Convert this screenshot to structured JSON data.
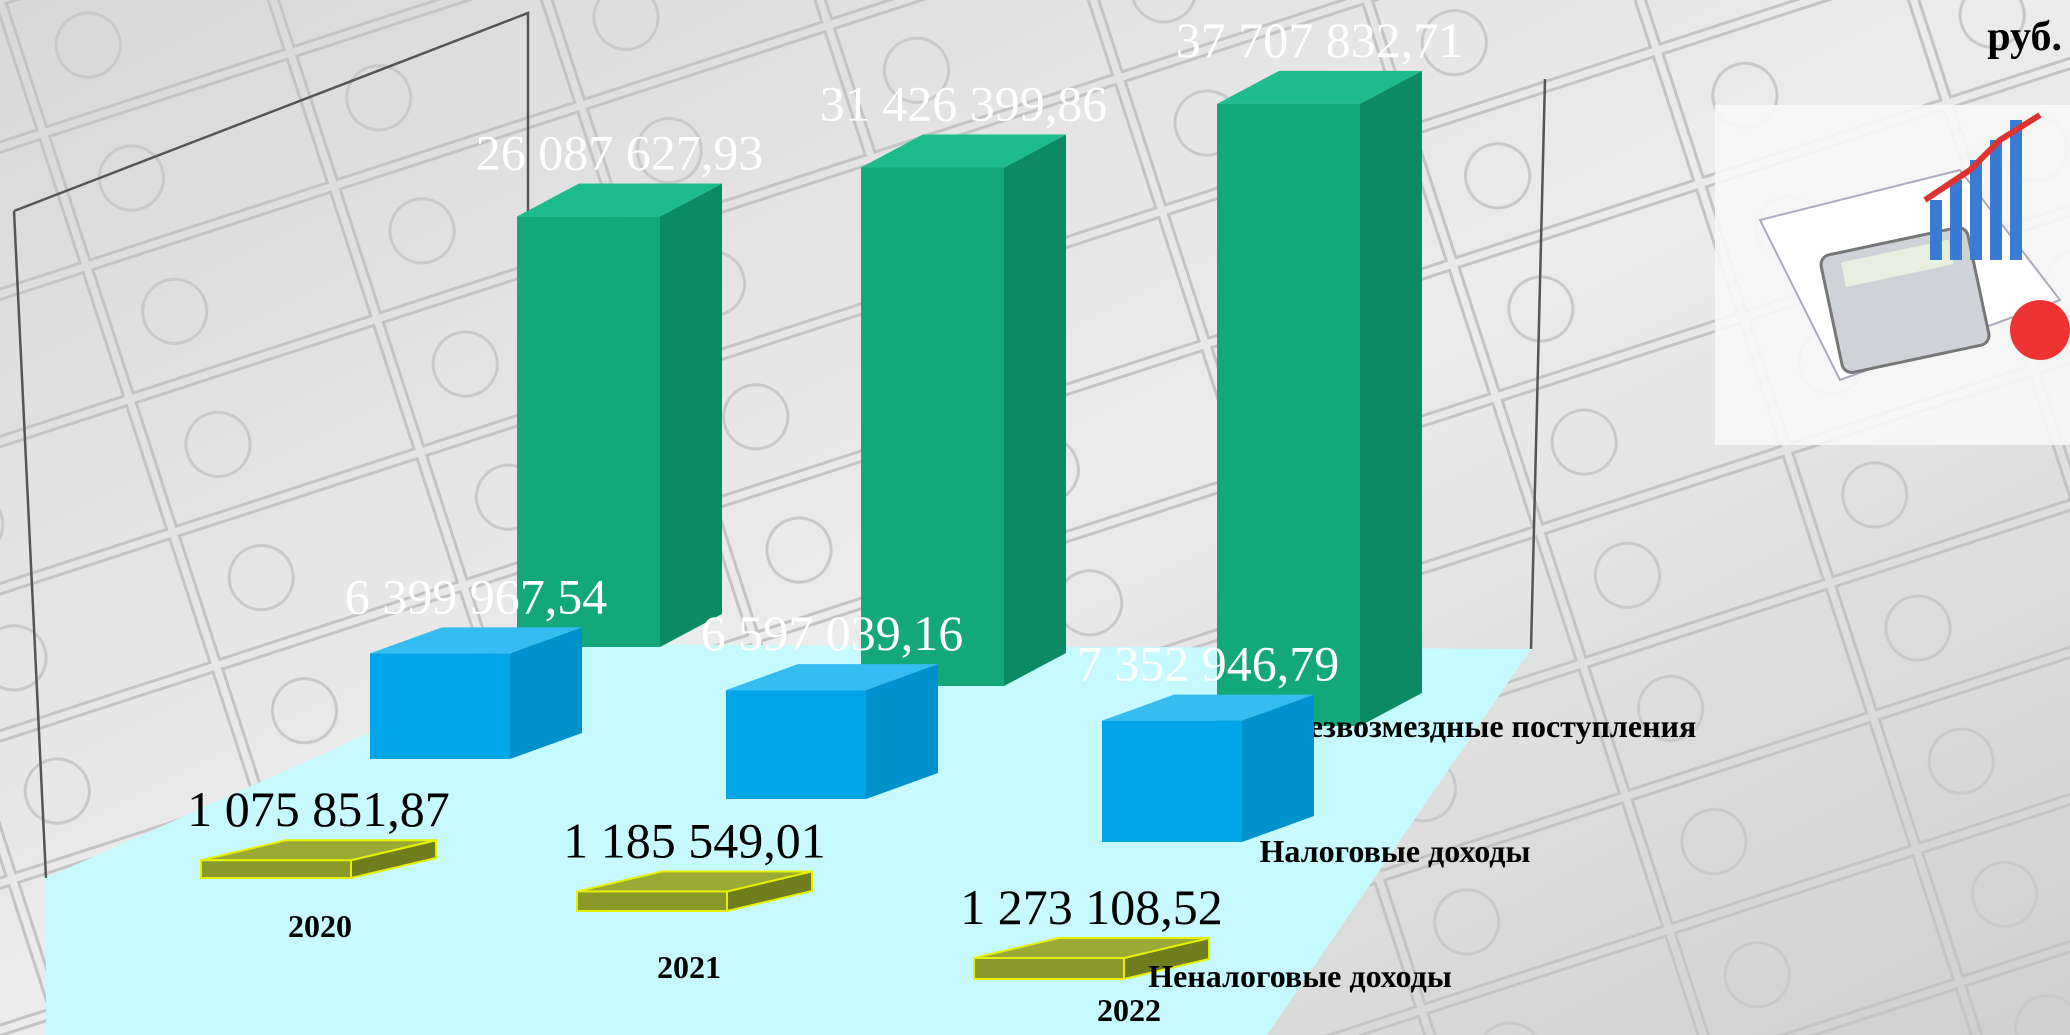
{
  "chart_data": {
    "type": "bar3d",
    "unit": "руб.",
    "categories": [
      "2020",
      "2021",
      "2022"
    ],
    "series": [
      {
        "name": "Безвозмездные поступления",
        "color": "#12a87a",
        "values": [
          26087627.93,
          31426399.86,
          37707832.71
        ],
        "value_labels": [
          "26 087 627,93",
          "31 426 399,86",
          "37 707 832,71"
        ]
      },
      {
        "name": "Налоговые доходы",
        "color": "#00a6e8",
        "values": [
          6399967.54,
          6597039.16,
          7352946.79
        ],
        "value_labels": [
          "6 399 967,54",
          "6 597 039,16",
          "7 352 946,79"
        ]
      },
      {
        "name": "Неналоговые доходы",
        "color": "#8a9a2a",
        "values": [
          1075851.87,
          1185549.01,
          1273108.52
        ],
        "value_labels": [
          "1 075 851,87",
          "1 185 549,01",
          "1 273 108,52"
        ]
      }
    ]
  }
}
